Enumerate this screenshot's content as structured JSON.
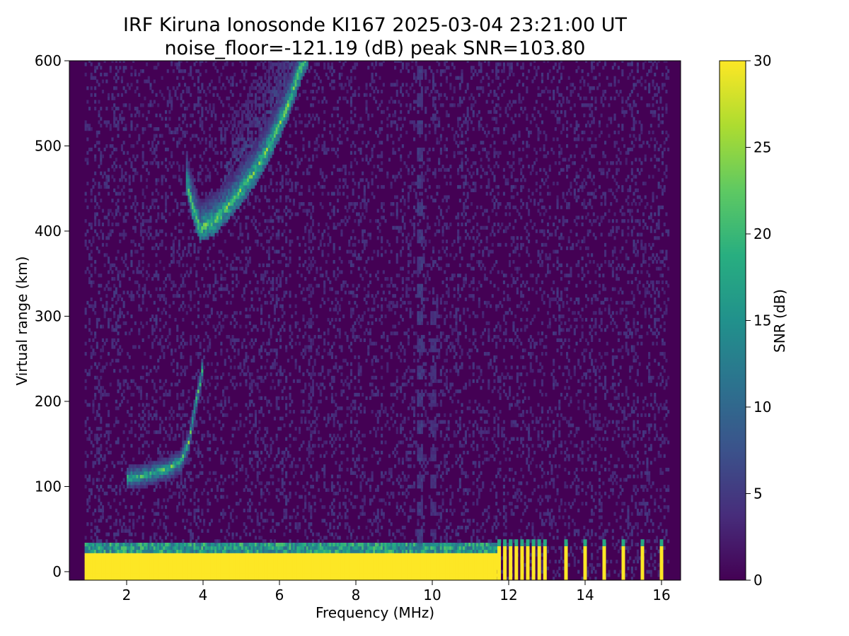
{
  "chart_data": {
    "type": "heatmap",
    "title": "IRF Kiruna Ionosonde KI167 2025-03-04 23:21:00  UT",
    "subtitle": "noise_floor=-121.19 (dB) peak SNR=103.80",
    "xlabel": "Frequency (MHz)",
    "ylabel": "Virtual range (km)",
    "xlim": [
      0.5,
      16.5
    ],
    "ylim": [
      -10,
      600
    ],
    "xticks": [
      2,
      4,
      6,
      8,
      10,
      12,
      14,
      16
    ],
    "yticks": [
      0,
      100,
      200,
      300,
      400,
      500,
      600
    ],
    "colorbar": {
      "label": "SNR (dB)",
      "colormap": "viridis",
      "range": [
        0,
        30
      ],
      "ticks": [
        0,
        5,
        10,
        15,
        20,
        25,
        30
      ]
    },
    "data_frequency_range_mhz": [
      0.9,
      16.2
    ],
    "features": [
      {
        "type": "ground-clutter",
        "freq_range": [
          0.9,
          11.7
        ],
        "range_km": [
          -10,
          30
        ],
        "snr": 30
      },
      {
        "type": "sparse-pulses",
        "freqs": [
          11.75,
          11.9,
          12.05,
          12.2,
          12.35,
          12.5,
          12.65,
          12.8,
          12.95,
          13.5,
          14.0,
          14.5,
          15.0,
          15.5,
          16.0
        ],
        "range_km": [
          -10,
          30
        ],
        "snr": 30
      },
      {
        "type": "e-layer-trace",
        "points": [
          [
            2.0,
            108
          ],
          [
            2.5,
            112
          ],
          [
            3.0,
            118
          ],
          [
            3.4,
            128
          ],
          [
            3.6,
            150
          ],
          [
            3.7,
            175
          ],
          [
            3.8,
            200
          ],
          [
            3.9,
            220
          ],
          [
            3.95,
            235
          ]
        ],
        "snr": 26
      },
      {
        "type": "f-layer-trace",
        "points": [
          [
            3.5,
            460
          ],
          [
            3.7,
            420
          ],
          [
            3.9,
            395
          ],
          [
            4.3,
            405
          ],
          [
            4.8,
            430
          ],
          [
            5.3,
            460
          ],
          [
            5.8,
            500
          ],
          [
            6.2,
            540
          ],
          [
            6.5,
            580
          ],
          [
            6.7,
            600
          ]
        ],
        "snr": 27
      },
      {
        "type": "interference-line",
        "freq": 9.65,
        "range_km": [
          0,
          600
        ],
        "snr": 6
      },
      {
        "type": "interference-line",
        "freq": 10.0,
        "range_km": [
          40,
          310
        ],
        "snr": 5
      },
      {
        "type": "interference-line",
        "freq": 6.8,
        "range_km": [
          40,
          450
        ],
        "snr": 3
      }
    ]
  }
}
